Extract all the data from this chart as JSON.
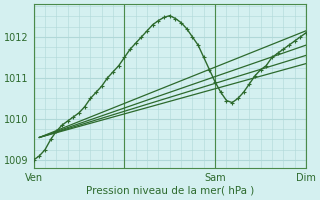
{
  "title": "",
  "xlabel": "Pression niveau de la mer( hPa )",
  "ylabel": "",
  "background_color": "#d4f0f0",
  "grid_color": "#b0d8d8",
  "line_color": "#2d6a2d",
  "ylim": [
    1008.8,
    1012.8
  ],
  "xlim": [
    0,
    48
  ],
  "yticks": [
    1009,
    1010,
    1011,
    1012
  ],
  "xtick_positions": [
    0,
    16,
    32,
    48
  ],
  "xtick_labels": [
    "Ven",
    "",
    "Sam",
    "Dim"
  ],
  "series_x": [
    0,
    1,
    2,
    3,
    4,
    5,
    6,
    7,
    8,
    9,
    10,
    11,
    12,
    13,
    14,
    15,
    16,
    17,
    18,
    19,
    20,
    21,
    22,
    23,
    24,
    25,
    26,
    27,
    28,
    29,
    30,
    31,
    32,
    33,
    34,
    35,
    36,
    37,
    38,
    39,
    40,
    41,
    42,
    43,
    44,
    45,
    46,
    47,
    48
  ],
  "values1": [
    1009.0,
    1009.1,
    1009.25,
    1009.5,
    1009.7,
    1009.85,
    1009.95,
    1010.05,
    1010.15,
    1010.3,
    1010.5,
    1010.65,
    1010.8,
    1011.0,
    1011.15,
    1011.3,
    1011.5,
    1011.7,
    1011.85,
    1012.0,
    1012.15,
    1012.3,
    1012.4,
    1012.48,
    1012.52,
    1012.45,
    1012.35,
    1012.2,
    1012.0,
    1011.8,
    1011.5,
    1011.2,
    1010.9,
    1010.65,
    1010.45,
    1010.4,
    1010.5,
    1010.65,
    1010.85,
    1011.05,
    1011.2,
    1011.3,
    1011.5,
    1011.6,
    1011.7,
    1011.8,
    1011.9,
    1012.0,
    1012.1
  ],
  "trend_lines": [
    {
      "x0": 1,
      "y0": 1009.55,
      "x1": 48,
      "y1": 1011.8
    },
    {
      "x0": 1,
      "y0": 1009.55,
      "x1": 48,
      "y1": 1011.55
    },
    {
      "x0": 1,
      "y0": 1009.55,
      "x1": 48,
      "y1": 1011.35
    },
    {
      "x0": 1,
      "y0": 1009.55,
      "x1": 48,
      "y1": 1012.15
    }
  ]
}
